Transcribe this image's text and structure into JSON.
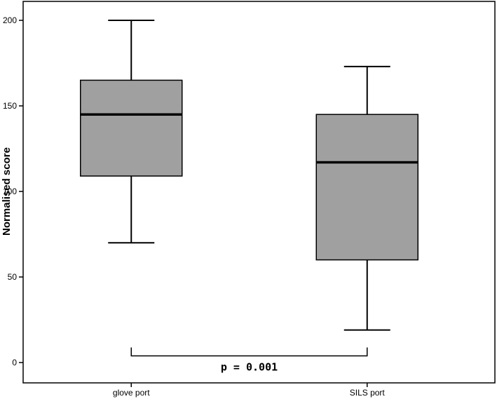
{
  "chart_data": {
    "type": "box",
    "title": "",
    "xlabel": "",
    "ylabel": "Normalised score",
    "ylim": [
      -8,
      212
    ],
    "yticks": [
      0,
      50,
      100,
      150,
      200
    ],
    "categories": [
      "glove port",
      "SILS port"
    ],
    "boxes": [
      {
        "category": "glove port",
        "min": 70,
        "q1": 109,
        "median": 145,
        "q3": 165,
        "max": 200
      },
      {
        "category": "SILS port",
        "min": 19,
        "q1": 60,
        "median": 117,
        "q3": 145,
        "max": 173
      }
    ],
    "box_color": "#a0a0a0",
    "grid": false,
    "legend": "none",
    "annotations": [
      {
        "text": "p = 0.001",
        "type": "significance-bracket",
        "from": "glove port",
        "to": "SILS port",
        "level": 8
      }
    ]
  }
}
